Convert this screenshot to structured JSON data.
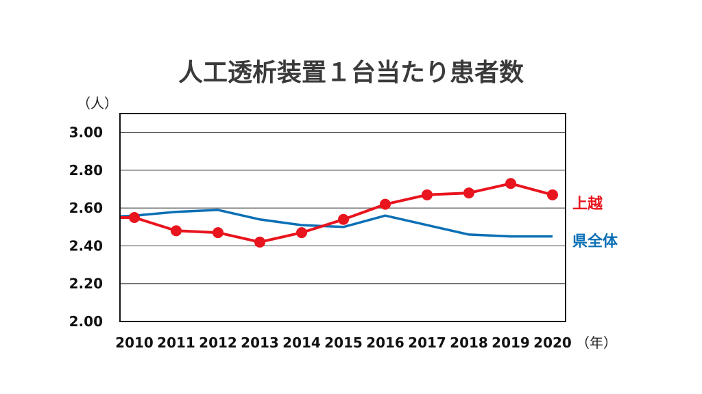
{
  "chart_data": {
    "type": "line",
    "title": "人工透析装置１台当たり患者数",
    "y_unit": "（人）",
    "x_unit": "（年）",
    "x": [
      "2010",
      "2011",
      "2012",
      "2013",
      "2014",
      "2015",
      "2016",
      "2017",
      "2018",
      "2019",
      "2020"
    ],
    "ylim": [
      2.0,
      3.1
    ],
    "y_ticks": [
      "2.00",
      "2.20",
      "2.40",
      "2.60",
      "2.80",
      "3.00"
    ],
    "grid": true,
    "series": [
      {
        "name": "上越",
        "color": "#e8141e",
        "markers": true,
        "values": [
          2.55,
          2.48,
          2.47,
          2.42,
          2.47,
          2.54,
          2.62,
          2.67,
          2.68,
          2.73,
          2.67
        ]
      },
      {
        "name": "県全体",
        "color": "#0a6fb5",
        "markers": false,
        "values": [
          2.56,
          2.58,
          2.59,
          2.54,
          2.51,
          2.5,
          2.56,
          2.51,
          2.46,
          2.45,
          2.45
        ]
      }
    ],
    "legend_placement": "right"
  }
}
